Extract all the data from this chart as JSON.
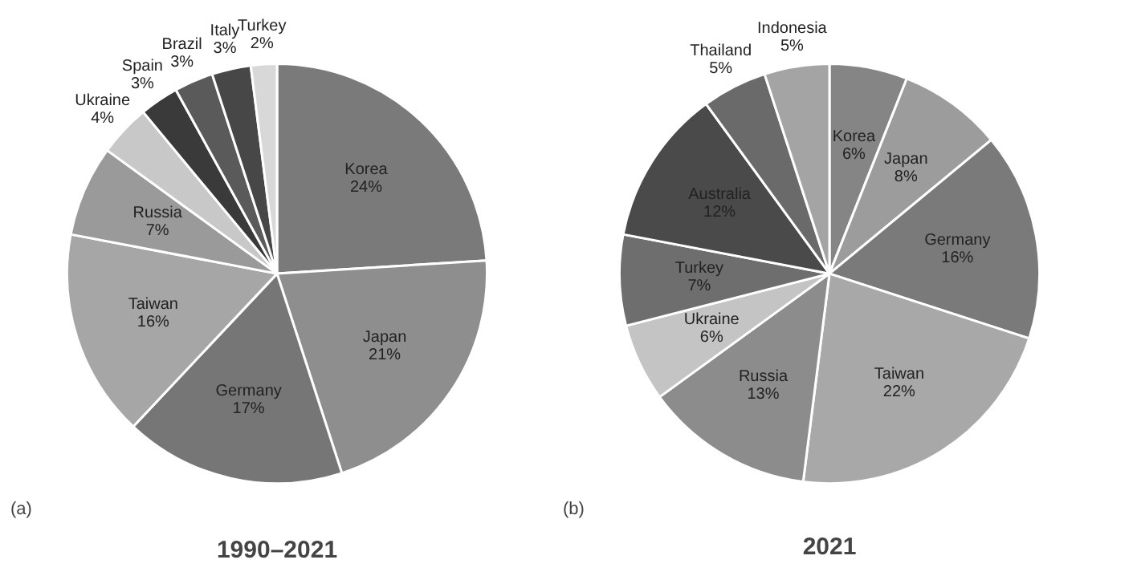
{
  "chart_data": [
    {
      "type": "pie",
      "title": "1990–2021",
      "annotations": [
        "(a)"
      ],
      "categories": [
        "Korea",
        "Japan",
        "Germany",
        "Taiwan",
        "Russia",
        "Ukraine",
        "Spain",
        "Brazil",
        "Italy",
        "Turkey"
      ],
      "values": [
        24,
        21,
        17,
        16,
        7,
        4,
        3,
        3,
        3,
        2
      ],
      "value_labels": [
        "24%",
        "21%",
        "17%",
        "16%",
        "7%",
        "4%",
        "3%",
        "3%",
        "3%",
        "2%"
      ],
      "colors": [
        "#7a7a7a",
        "#8e8e8e",
        "#767676",
        "#a6a6a6",
        "#9a9a9a",
        "#c8c8c8",
        "#3a3a3a",
        "#5a5a5a",
        "#474747",
        "#d8d8d8"
      ]
    },
    {
      "type": "pie",
      "title": "2021",
      "annotations": [
        "(b)"
      ],
      "categories": [
        "Korea",
        "Japan",
        "Germany",
        "Taiwan",
        "Russia",
        "Ukraine",
        "Turkey",
        "Australia",
        "Thailand",
        "Indonesia"
      ],
      "values": [
        6,
        8,
        16,
        22,
        13,
        6,
        7,
        12,
        5,
        5
      ],
      "value_labels": [
        "6%",
        "8%",
        "16%",
        "22%",
        "13%",
        "6%",
        "7%",
        "12%",
        "5%",
        "5%"
      ],
      "colors": [
        "#858585",
        "#9c9c9c",
        "#7a7a7a",
        "#a8a8a8",
        "#8c8c8c",
        "#c4c4c4",
        "#6e6e6e",
        "#4a4a4a",
        "#6a6a6a",
        "#a4a4a4"
      ]
    }
  ]
}
